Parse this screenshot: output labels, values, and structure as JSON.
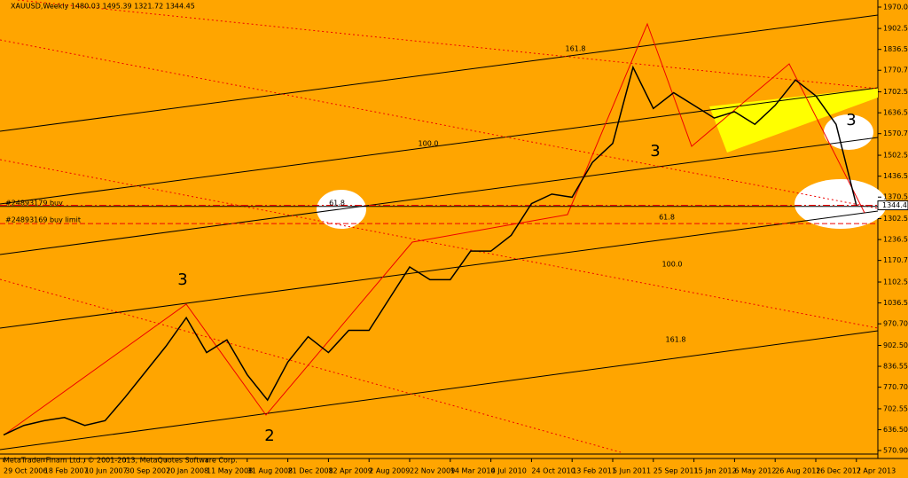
{
  "chart_data": {
    "type": "line",
    "title": "XAUUSD,Weekly  1480.03 1495.39 1321.72 1344.45",
    "footer": "MetaTrader Finam Ltd., © 2001-2013, MetaQuotes Software Corp.",
    "categories": [
      "29 Oct 2006",
      null,
      "18 Feb 2007",
      null,
      "10 Jun 2007",
      null,
      "30 Sep 2007",
      null,
      "20 Jan 2008",
      null,
      "11 May 2008",
      null,
      "31 Aug 2008",
      null,
      "21 Dec 2008",
      null,
      "12 Apr 2009",
      null,
      "2 Aug 2009",
      null,
      "22 Nov 2009",
      null,
      "14 Mar 2010",
      null,
      "4 Jul 2010",
      null,
      "24 Oct 2010",
      null,
      "13 Feb 2011",
      null,
      "5 Jun 2011",
      null,
      "25 Sep 2011",
      null,
      "15 Jan 2012",
      null,
      "6 May 2012",
      null,
      "26 Aug 2012",
      null,
      "16 Dec 2012",
      null,
      "7 Apr 2013"
    ],
    "series": [
      {
        "name": "XAUUSD",
        "color": "#000000",
        "values": [
          620,
          650,
          665,
          675,
          650,
          665,
          740,
          820,
          900,
          990,
          880,
          920,
          810,
          730,
          850,
          930,
          880,
          950,
          950,
          1050,
          1150,
          1110,
          1110,
          1200,
          1200,
          1250,
          1350,
          1380,
          1370,
          1480,
          1540,
          1780,
          1650,
          1700,
          1660,
          1620,
          1640,
          1600,
          1660,
          1740,
          1690,
          1600,
          1344.45
        ]
      }
    ],
    "ylim": [
      545.7,
      1992.4
    ],
    "yticks": [
      1970.05,
      {
        "value": 1902.5,
        "label": "1902.50"
      },
      1836.55,
      {
        "value": 1770.7,
        "label": "1770.70"
      },
      1702.55,
      1636.55,
      {
        "value": 1570.7,
        "label": "1570.70"
      },
      1502.55,
      {
        "value": 1436.5,
        "label": "1436.50"
      },
      {
        "value": 1370.5,
        "label": "1370.50"
      },
      1302.55,
      1236.55,
      {
        "value": 1170.7,
        "label": "1170.70"
      },
      {
        "value": 1102.5,
        "label": "1102.50"
      },
      1036.55,
      {
        "value": 970.7,
        "label": "970.70"
      },
      {
        "value": 902.5,
        "label": "902.50"
      },
      836.55,
      {
        "value": 770.7,
        "label": "770.70"
      },
      702.55,
      {
        "value": 636.5,
        "label": "636.50"
      },
      {
        "value": 570.9,
        "label": "570.90"
      }
    ],
    "current_price": 1344.45,
    "orders": [
      {
        "label": "#24893179 buy",
        "price": 1341
      },
      {
        "label": "#24893169 buy limit",
        "price": 1287
      }
    ],
    "annotations": [
      "3",
      "3",
      "3",
      "2",
      "161.8",
      "100.0",
      "61.8",
      "61.8",
      "100.0",
      "161.8"
    ]
  }
}
